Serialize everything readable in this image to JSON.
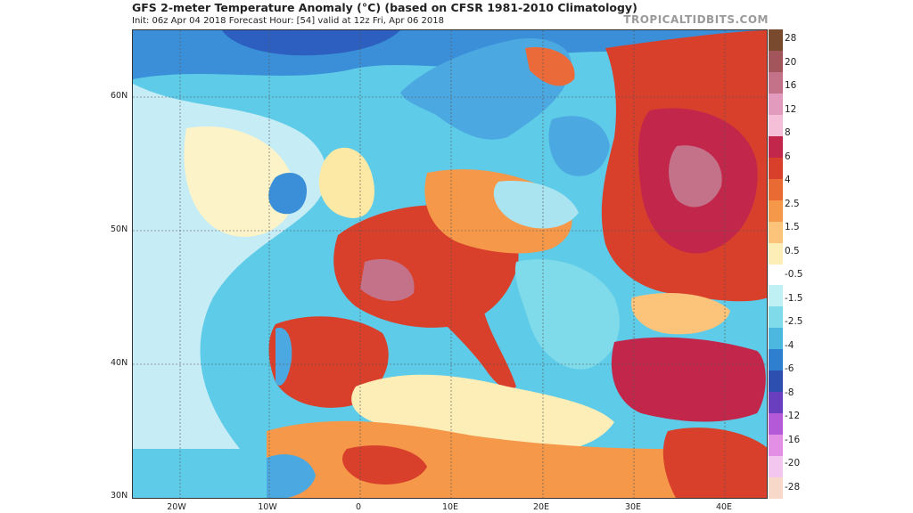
{
  "header": {
    "title": "GFS 2-meter Temperature Anomaly (°C) (based on CFSR 1981-2010 Climatology)",
    "subtitle": "Init: 06z Apr 04 2018   Forecast Hour: [54]   valid at 12z Fri, Apr 06 2018",
    "brand": "TROPICALTIDBITS.COM"
  },
  "colorbar": {
    "labels": [
      "28",
      "20",
      "16",
      "12",
      "8",
      "6",
      "4",
      "2.5",
      "1.5",
      "0.5",
      "-0.5",
      "-1.5",
      "-2.5",
      "-4",
      "-6",
      "-8",
      "-12",
      "-16",
      "-20",
      "-28"
    ],
    "colors": [
      "#7a4a2e",
      "#a3555c",
      "#c4718a",
      "#e29abd",
      "#f5bfd8",
      "#c2264a",
      "#d8402c",
      "#ea6a33",
      "#f6984a",
      "#fbc47a",
      "#fdeeb8",
      "#ffffff",
      "#bff0f4",
      "#7fdaea",
      "#4cb8e0",
      "#2f7fd0",
      "#2c4fb0",
      "#6a3fbf",
      "#b45ad8",
      "#e48fe6",
      "#f3c6f0",
      "#f8d8c8"
    ]
  },
  "axes": {
    "lat_labels": [
      "60N",
      "50N",
      "40N",
      "30N"
    ],
    "lon_labels": [
      "20W",
      "10W",
      "0",
      "10E",
      "20E",
      "30E",
      "40E"
    ]
  }
}
